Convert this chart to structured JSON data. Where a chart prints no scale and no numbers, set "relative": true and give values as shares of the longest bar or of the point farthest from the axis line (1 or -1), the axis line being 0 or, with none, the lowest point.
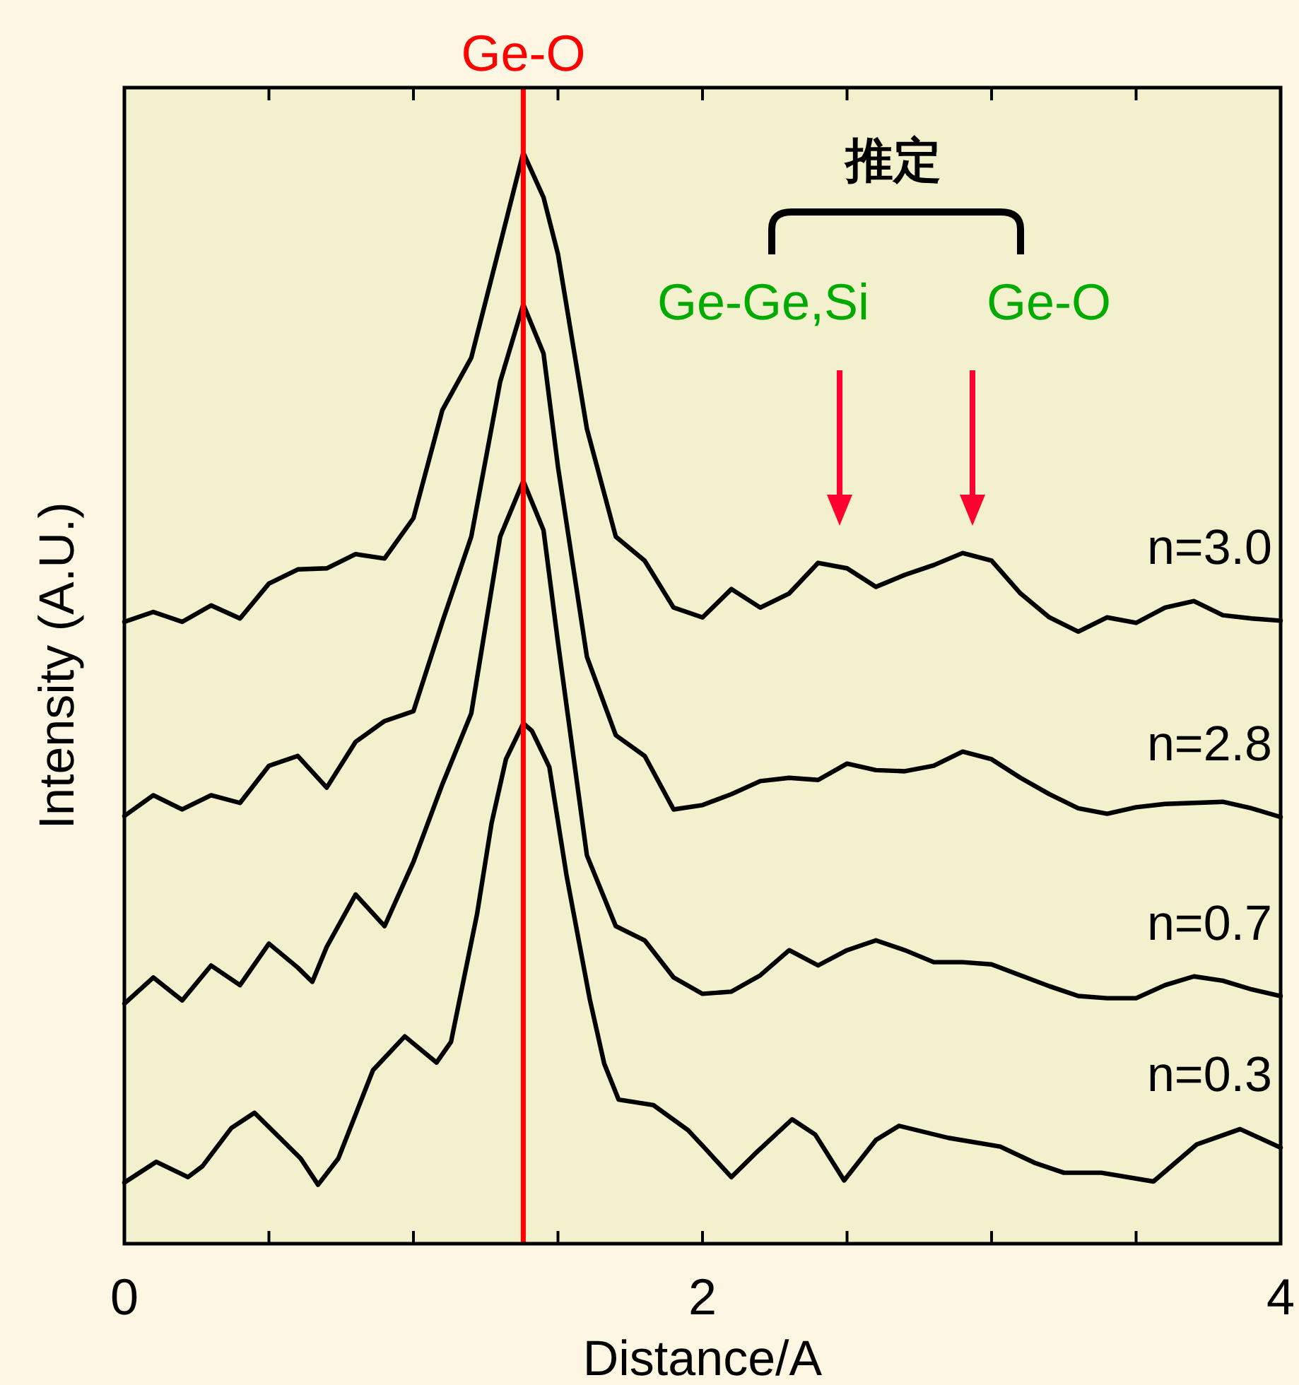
{
  "chart_data": {
    "type": "line",
    "relative": true,
    "xlabel": "Distance/A",
    "ylabel": "Intensity (A.U.)",
    "xlim": [
      0,
      4
    ],
    "xticks": [
      0,
      {
        "value": 0.5,
        "label": null
      },
      {
        "value": 1,
        "label": null
      },
      {
        "value": 1.5,
        "label": null
      },
      2,
      {
        "value": 2.5,
        "label": null
      },
      {
        "value": 3,
        "label": null
      },
      {
        "value": 3.5,
        "label": null
      },
      4
    ],
    "ref_lines": [
      {
        "axis": "x",
        "value": 1.38,
        "label": "Ge-O",
        "color": "#ff0000"
      }
    ],
    "annotations": [
      "推定",
      "Ge-Ge,Si",
      "Ge-O"
    ],
    "series": [
      {
        "name": "n=3.0",
        "color": "#000000",
        "x": [
          0,
          0.1,
          0.2,
          0.3,
          0.4,
          0.5,
          0.6,
          0.7,
          0.8,
          0.9,
          1.0,
          1.1,
          1.2,
          1.3,
          1.38,
          1.45,
          1.5,
          1.6,
          1.7,
          1.8,
          1.9,
          2.0,
          2.1,
          2.2,
          2.3,
          2.4,
          2.5,
          2.6,
          2.7,
          2.8,
          2.9,
          3.0,
          3.1,
          3.2,
          3.3,
          3.4,
          3.5,
          3.6,
          3.7,
          3.8,
          3.9,
          4.0
        ],
        "values": [
          0.57,
          0.579,
          0.57,
          0.585,
          0.573,
          0.605,
          0.618,
          0.619,
          0.632,
          0.628,
          0.665,
          0.764,
          0.812,
          0.916,
          1.0,
          0.959,
          0.907,
          0.747,
          0.648,
          0.626,
          0.583,
          0.574,
          0.6,
          0.583,
          0.596,
          0.624,
          0.619,
          0.602,
          0.613,
          0.622,
          0.633,
          0.626,
          0.596,
          0.574,
          0.561,
          0.574,
          0.569,
          0.583,
          0.589,
          0.576,
          0.573,
          0.571
        ]
      },
      {
        "name": "n=2.8",
        "color": "#000000",
        "x": [
          0,
          0.1,
          0.2,
          0.3,
          0.4,
          0.5,
          0.6,
          0.7,
          0.8,
          0.9,
          1.0,
          1.1,
          1.2,
          1.3,
          1.38,
          1.45,
          1.5,
          1.6,
          1.7,
          1.8,
          1.9,
          2.0,
          2.1,
          2.2,
          2.3,
          2.4,
          2.5,
          2.6,
          2.7,
          2.8,
          2.9,
          3.0,
          3.1,
          3.2,
          3.3,
          3.4,
          3.5,
          3.6,
          3.7,
          3.8,
          3.9,
          4.0
        ],
        "values": [
          0.392,
          0.411,
          0.398,
          0.411,
          0.404,
          0.438,
          0.447,
          0.418,
          0.46,
          0.479,
          0.488,
          0.57,
          0.648,
          0.79,
          0.861,
          0.816,
          0.712,
          0.538,
          0.466,
          0.447,
          0.398,
          0.402,
          0.412,
          0.424,
          0.427,
          0.425,
          0.44,
          0.434,
          0.433,
          0.438,
          0.451,
          0.444,
          0.427,
          0.412,
          0.399,
          0.394,
          0.4,
          0.403,
          0.404,
          0.405,
          0.399,
          0.391
        ]
      },
      {
        "name": "n=0.7",
        "color": "#000000",
        "x": [
          0,
          0.1,
          0.2,
          0.3,
          0.4,
          0.5,
          0.6,
          0.65,
          0.7,
          0.8,
          0.9,
          1.0,
          1.1,
          1.2,
          1.3,
          1.38,
          1.45,
          1.5,
          1.6,
          1.7,
          1.8,
          1.9,
          2.0,
          2.1,
          2.2,
          2.3,
          2.4,
          2.5,
          2.6,
          2.7,
          2.8,
          2.9,
          3.0,
          3.1,
          3.2,
          3.3,
          3.4,
          3.5,
          3.6,
          3.7,
          3.8,
          3.9,
          4.0
        ],
        "values": [
          0.22,
          0.244,
          0.223,
          0.255,
          0.237,
          0.275,
          0.253,
          0.24,
          0.272,
          0.32,
          0.291,
          0.35,
          0.421,
          0.486,
          0.648,
          0.699,
          0.654,
          0.551,
          0.356,
          0.291,
          0.278,
          0.244,
          0.229,
          0.231,
          0.246,
          0.269,
          0.255,
          0.269,
          0.278,
          0.269,
          0.258,
          0.258,
          0.256,
          0.246,
          0.236,
          0.227,
          0.225,
          0.225,
          0.237,
          0.245,
          0.241,
          0.233,
          0.227
        ]
      },
      {
        "name": "n=0.3",
        "color": "#000000",
        "x": [
          0,
          0.11,
          0.22,
          0.27,
          0.37,
          0.45,
          0.61,
          0.67,
          0.74,
          0.86,
          0.97,
          1.08,
          1.13,
          1.22,
          1.27,
          1.32,
          1.38,
          1.41,
          1.47,
          1.53,
          1.61,
          1.66,
          1.71,
          1.83,
          1.95,
          2.01,
          2.1,
          2.18,
          2.31,
          2.39,
          2.49,
          2.6,
          2.68,
          2.85,
          3.03,
          3.15,
          3.25,
          3.38,
          3.56,
          3.71,
          3.86,
          4.0
        ],
        "values": [
          0.056,
          0.075,
          0.061,
          0.071,
          0.106,
          0.12,
          0.078,
          0.054,
          0.078,
          0.159,
          0.19,
          0.166,
          0.185,
          0.302,
          0.385,
          0.444,
          0.477,
          0.47,
          0.437,
          0.337,
          0.224,
          0.165,
          0.132,
          0.127,
          0.104,
          0.087,
          0.061,
          0.082,
          0.114,
          0.1,
          0.058,
          0.095,
          0.108,
          0.097,
          0.089,
          0.074,
          0.065,
          0.065,
          0.057,
          0.091,
          0.105,
          0.088
        ]
      }
    ]
  }
}
